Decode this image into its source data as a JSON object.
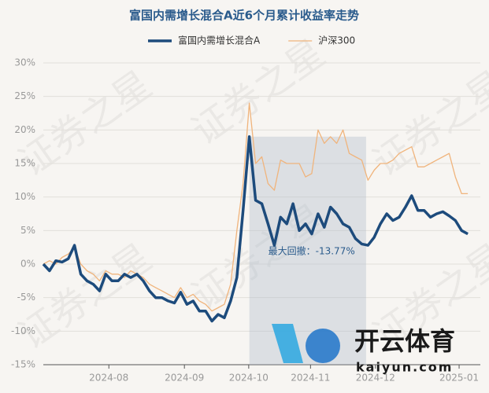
{
  "chart_data": {
    "type": "line",
    "title": "富国内需增长混合A近6个月累计收益率走势",
    "x": [
      0,
      1,
      2,
      3,
      4,
      5,
      6,
      7,
      8,
      9,
      10,
      11,
      12,
      13,
      14,
      15,
      16,
      17,
      18,
      19,
      20,
      21,
      22,
      23,
      24,
      25,
      26,
      27,
      28,
      29,
      30,
      31,
      32,
      33,
      34,
      35,
      36,
      37,
      38,
      39,
      40,
      41,
      42,
      43,
      44,
      45,
      46,
      47,
      48,
      49,
      50,
      51,
      52,
      53,
      54,
      55,
      56,
      57,
      58,
      59,
      60,
      61,
      62,
      63,
      64,
      65,
      66,
      67,
      68
    ],
    "series": [
      {
        "name": "富国内需增长混合A",
        "color": "#1d4b7c",
        "width": 3.5,
        "values": [
          0,
          -1,
          0.5,
          0.3,
          0.8,
          2.8,
          -1.5,
          -2.5,
          -3,
          -4,
          -1.5,
          -2.5,
          -2.5,
          -1.5,
          -2,
          -1.5,
          -2.5,
          -4,
          -5,
          -5,
          -5.5,
          -5.8,
          -4.2,
          -6,
          -5.5,
          -7,
          -7,
          -8.5,
          -7.5,
          -8,
          -5.5,
          -2,
          8,
          19,
          9.5,
          9,
          6,
          2.8,
          7,
          6,
          9,
          5,
          6,
          4.5,
          7.5,
          5.5,
          8.5,
          7.5,
          6,
          5.5,
          3.8,
          3,
          2.8,
          4,
          6,
          7.5,
          6.5,
          7,
          8.5,
          10.2,
          8,
          8,
          7,
          7.5,
          7.8,
          7.2,
          6.5,
          5,
          4.5
        ]
      },
      {
        "name": "沪深300",
        "color": "#f0b47c",
        "width": 1.3,
        "values": [
          0,
          0.5,
          0,
          1,
          1.5,
          2.5,
          0,
          -1,
          -1.5,
          -2.5,
          -1,
          -1.5,
          -1.5,
          -2,
          -1,
          -1.5,
          -2,
          -3,
          -3.5,
          -4,
          -4.5,
          -5,
          -3.5,
          -5,
          -4.5,
          -5.5,
          -6,
          -7,
          -6.5,
          -6,
          -3,
          5,
          12,
          24,
          15,
          16,
          12,
          11,
          15.5,
          15,
          15,
          15,
          13,
          13.5,
          20,
          18,
          19,
          18,
          20,
          16.5,
          16,
          15.5,
          12.5,
          14,
          15,
          15,
          15.5,
          16.5,
          17,
          17.5,
          14.5,
          14.5,
          15,
          15.5,
          16,
          16.5,
          13,
          10.5,
          10.5
        ]
      }
    ],
    "xlim": [
      0,
      70
    ],
    "ylim": [
      -15,
      30
    ],
    "xticks": [
      {
        "value": 10.5,
        "label": "2024-08"
      },
      {
        "value": 22.6,
        "label": "2024-09"
      },
      {
        "value": 32.9,
        "label": "2024-10"
      },
      {
        "value": 42.8,
        "label": "2024-11"
      },
      {
        "value": 53.2,
        "label": "2024-12"
      },
      {
        "value": 66.6,
        "label": "2025-01"
      }
    ],
    "yticks": [
      {
        "value": -15,
        "label": "-15%"
      },
      {
        "value": -10,
        "label": "-10%"
      },
      {
        "value": -5,
        "label": "-5%"
      },
      {
        "value": 0,
        "label": "0%"
      },
      {
        "value": 5,
        "label": "5%"
      },
      {
        "value": 10,
        "label": "10%"
      },
      {
        "value": 15,
        "label": "15%"
      },
      {
        "value": 20,
        "label": "20%"
      },
      {
        "value": 25,
        "label": "25%"
      },
      {
        "value": 30,
        "label": "30%"
      }
    ],
    "grid": true,
    "drawdown": {
      "start": 33,
      "end": 51.7,
      "label": "最大回撤：-13.77%"
    },
    "watermark": "证券之星",
    "logo": {
      "name": "开云体育",
      "url": "kaiyun.com"
    }
  }
}
